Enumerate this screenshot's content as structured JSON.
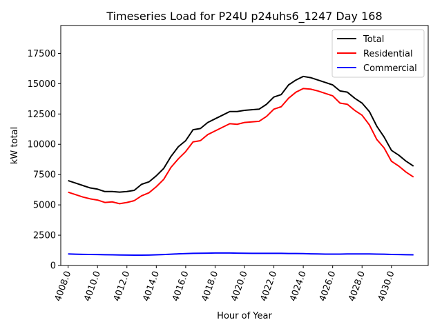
{
  "chart_data": {
    "type": "line",
    "title": "Timeseries Load for P24U p24uhs6_1247  Day 168",
    "xlabel": "Hour of Year",
    "ylabel": "kW total",
    "xlim": [
      4007.5,
      4032.5
    ],
    "ylim": [
      0,
      19800
    ],
    "x_ticks": [
      4008,
      4010,
      4012,
      4014,
      4016,
      4018,
      4020,
      4022,
      4024,
      4026,
      4028,
      4030
    ],
    "x_tick_labels": [
      "4008.0",
      "4010.0",
      "4012.0",
      "4014.0",
      "4016.0",
      "4018.0",
      "4020.0",
      "4022.0",
      "4024.0",
      "4026.0",
      "4028.0",
      "4030.0"
    ],
    "y_ticks": [
      0,
      2500,
      5000,
      7500,
      10000,
      12500,
      15000,
      17500
    ],
    "y_tick_labels": [
      "0",
      "2500",
      "5000",
      "7500",
      "10000",
      "12500",
      "15000",
      "17500"
    ],
    "legend_position": "top-right",
    "x": [
      4008.0,
      4008.5,
      4009.0,
      4009.5,
      4010.0,
      4010.5,
      4011.0,
      4011.5,
      4012.0,
      4012.5,
      4013.0,
      4013.5,
      4014.0,
      4014.5,
      4015.0,
      4015.5,
      4016.0,
      4016.5,
      4017.0,
      4017.5,
      4018.0,
      4018.5,
      4019.0,
      4019.5,
      4020.0,
      4020.5,
      4021.0,
      4021.5,
      4022.0,
      4022.5,
      4023.0,
      4023.5,
      4024.0,
      4024.5,
      4025.0,
      4025.5,
      4026.0,
      4026.5,
      4027.0,
      4027.5,
      4028.0,
      4028.5,
      4029.0,
      4029.5,
      4030.0,
      4030.5,
      4031.0,
      4031.5
    ],
    "series": [
      {
        "name": "Total",
        "color": "#000000",
        "values": [
          7000,
          6800,
          6600,
          6400,
          6300,
          6100,
          6100,
          6050,
          6100,
          6200,
          6700,
          6900,
          7400,
          8000,
          9000,
          9800,
          10300,
          11200,
          11300,
          11800,
          12100,
          12400,
          12700,
          12700,
          12800,
          12850,
          12900,
          13300,
          13900,
          14100,
          14900,
          15300,
          15600,
          15500,
          15300,
          15100,
          14900,
          14400,
          14300,
          13800,
          13400,
          12700,
          11500,
          10600,
          9500,
          9100,
          8600,
          8200
        ]
      },
      {
        "name": "Residential",
        "color": "#ff0000",
        "values": [
          6050,
          5850,
          5650,
          5500,
          5400,
          5200,
          5250,
          5100,
          5200,
          5350,
          5750,
          6000,
          6500,
          7100,
          8100,
          8800,
          9400,
          10200,
          10300,
          10800,
          11100,
          11400,
          11700,
          11650,
          11800,
          11850,
          11900,
          12300,
          12900,
          13100,
          13800,
          14300,
          14600,
          14550,
          14400,
          14200,
          14000,
          13400,
          13300,
          12800,
          12400,
          11600,
          10400,
          9700,
          8600,
          8200,
          7700,
          7300
        ]
      },
      {
        "name": "Commercial",
        "color": "#0000ff",
        "values": [
          950,
          930,
          920,
          910,
          900,
          890,
          880,
          870,
          860,
          850,
          850,
          860,
          880,
          900,
          930,
          960,
          980,
          1000,
          1010,
          1020,
          1030,
          1030,
          1030,
          1020,
          1010,
          1000,
          1000,
          1000,
          1000,
          1000,
          990,
          990,
          980,
          960,
          950,
          940,
          940,
          940,
          950,
          950,
          950,
          950,
          940,
          930,
          910,
          900,
          890,
          880
        ]
      }
    ]
  }
}
